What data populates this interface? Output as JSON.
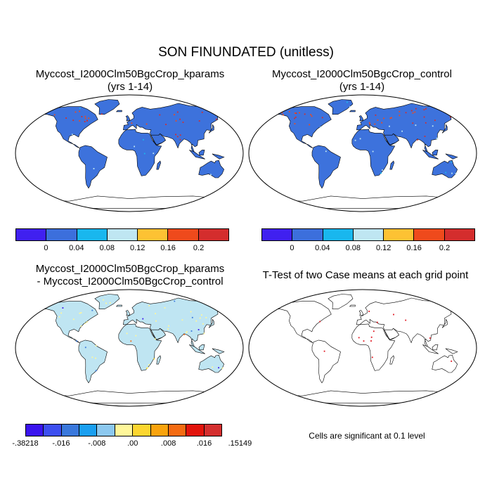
{
  "title": "SON FINUNDATED (unitless)",
  "panels": {
    "kparams": {
      "line1": "Myccost_I2000Clm50BgcCrop_kparams",
      "line2": "(yrs 1-14)"
    },
    "control": {
      "line1": "Myccost_I2000Clm50BgcCrop_control",
      "line2": "(yrs 1-14)"
    },
    "diff": {
      "line1": "Myccost_I2000Clm50BgcCrop_kparams",
      "line2": "- Myccost_I2000Clm50BgcCrop_control"
    },
    "ttest": {
      "line1": "T-Test of two Case means at each grid point"
    }
  },
  "colorbar_abs": {
    "colors": [
      "#4020f0",
      "#3c6fdc",
      "#19b7ee",
      "#bfe6f2",
      "#fdc233",
      "#ef4a1c",
      "#d42d2d"
    ],
    "labels": [
      "0",
      "0.04",
      "0.08",
      "0.12",
      "0.16",
      "0.2"
    ]
  },
  "colorbar_diff": {
    "colors": [
      "#3a14ee",
      "#3d4ff0",
      "#3a78dc",
      "#1a9ff0",
      "#8cc8ef",
      "#fff79a",
      "#fcd630",
      "#f9a30d",
      "#f46b12",
      "#e2140c",
      "#d42f2f"
    ],
    "labels": [
      "-.38218",
      "-.016",
      "-.008",
      ".00",
      ".008",
      ".016",
      ".15149"
    ]
  },
  "significance_note": "Cells are significant at 0.1 level",
  "map_colors": {
    "land_abs": "#3d72dc",
    "land_diff": "#bfe5f2",
    "land_ttest": "#ffffff",
    "significant": "#e0141e",
    "wet_high": "#d42d2d",
    "wet_mid": "#ef4a1c"
  }
}
